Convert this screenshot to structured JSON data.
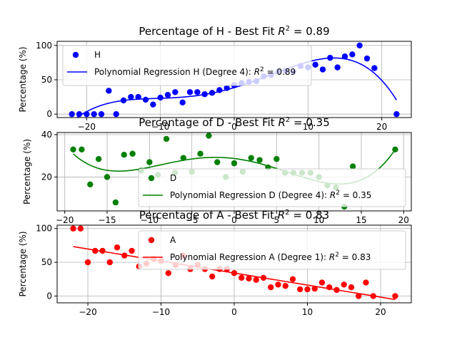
{
  "chart_data": [
    {
      "type": "scatter",
      "title": "Percentage of H - Best Fit R² = 0.89",
      "title_prefix": "Percentage of H - Best Fit ",
      "title_suffix": " = 0.89",
      "xlabel": "",
      "ylabel": "Percentage (%)",
      "xlim": [
        -24,
        24
      ],
      "ylim": [
        -5,
        106
      ],
      "xticks": [
        -20,
        -10,
        0,
        10,
        20
      ],
      "yticks": [
        0,
        50,
        100
      ],
      "grid": true,
      "legend_placement": "upper-left",
      "color": "#0000ff",
      "series": [
        {
          "name": "H",
          "kind": "points",
          "x": [
            -22,
            -21,
            -20,
            -19,
            -18,
            -17,
            -16,
            -15,
            -14,
            -13,
            -12,
            -11,
            -10,
            -9,
            -8,
            -7,
            -6,
            -5,
            -4,
            -3,
            -2,
            -1,
            0,
            1,
            2,
            3,
            4,
            5,
            6,
            7,
            8,
            9,
            10,
            11,
            12,
            13,
            14,
            15,
            16,
            17,
            18,
            19,
            22
          ],
          "values": [
            0,
            0,
            0,
            0,
            0,
            34,
            0,
            20,
            25,
            25,
            21,
            14,
            24,
            28,
            32,
            17,
            32,
            32,
            29,
            31,
            35,
            38,
            42,
            45,
            47,
            48,
            55,
            57,
            62,
            63,
            62,
            70,
            68,
            72,
            65,
            82,
            68,
            84,
            87,
            100,
            81,
            67,
            0
          ]
        },
        {
          "name": "Polynomial Regression H (Degree 4): ",
          "name_suffix": " = 0.89",
          "kind": "curve",
          "fit": "poly4",
          "x_range": [
            -22,
            22
          ]
        }
      ]
    },
    {
      "type": "scatter",
      "title": "Percentage of D - Best Fit R² = 0.35",
      "title_prefix": "Percentage of D - Best Fit ",
      "title_suffix": " = 0.35",
      "xlabel": "",
      "ylabel": "Percentage (%)",
      "xlim": [
        -20.9,
        20.9
      ],
      "ylim": [
        4,
        41
      ],
      "xticks": [
        -20,
        -15,
        -10,
        -5,
        0,
        5,
        10,
        15,
        20
      ],
      "yticks": [
        20,
        40
      ],
      "grid": true,
      "legend_placement": "lower-right",
      "color": "#008000",
      "series": [
        {
          "name": "D",
          "kind": "points",
          "x": [
            -19,
            -18,
            -17,
            -16,
            -15,
            -14,
            -13,
            -12,
            -11,
            -10,
            -9,
            -8,
            -7,
            -6,
            -5,
            -4,
            -3,
            -2,
            -1,
            0,
            1,
            2,
            3,
            4,
            5,
            6,
            7,
            8,
            9,
            10,
            11,
            12,
            13,
            14,
            19
          ],
          "values": [
            33,
            33,
            16.5,
            28.5,
            20,
            8,
            30.5,
            31,
            23,
            27,
            21,
            38,
            22,
            29,
            22.5,
            31,
            39.5,
            27,
            20,
            26.5,
            22.5,
            29,
            28,
            24.5,
            28.5,
            22,
            22,
            22,
            22,
            20,
            16,
            15,
            6,
            25,
            33
          ]
        },
        {
          "name": "Polynomial Regression D (Degree 4): ",
          "name_suffix": " = 0.35",
          "kind": "curve",
          "fit": "poly4",
          "x_range": [
            -19,
            19
          ]
        }
      ]
    },
    {
      "type": "scatter",
      "title": "Percentage of A - Best Fit R² = 0.83",
      "title_prefix": "Percentage of A - Best Fit ",
      "title_suffix": " = 0.83",
      "xlabel": "",
      "ylabel": "Percentage (%)",
      "xlim": [
        -24.2,
        24.2
      ],
      "ylim": [
        -10,
        105
      ],
      "xticks": [
        -20,
        -10,
        0,
        10,
        20
      ],
      "yticks": [
        0,
        50,
        100
      ],
      "grid": true,
      "legend_placement": "upper-right",
      "color": "#ff0000",
      "series": [
        {
          "name": "A",
          "kind": "points",
          "x": [
            -22,
            -21,
            -20,
            -19,
            -18,
            -17,
            -16,
            -15,
            -14,
            -13,
            -12,
            -11,
            -10,
            -9,
            -8,
            -7,
            -6,
            -5,
            -4,
            -3,
            -2,
            -1,
            0,
            1,
            2,
            3,
            4,
            5,
            6,
            7,
            8,
            9,
            10,
            11,
            12,
            13,
            14,
            15,
            16,
            17,
            18,
            19,
            22
          ],
          "values": [
            100,
            100,
            50,
            67,
            67,
            50,
            72,
            60,
            67,
            44,
            48,
            55,
            52,
            34,
            46,
            60,
            40,
            46,
            40,
            29,
            40,
            40,
            34,
            27,
            26,
            24,
            27,
            13,
            17,
            15,
            25,
            10,
            10,
            11,
            20,
            13,
            9,
            17,
            13,
            0,
            20,
            0,
            0
          ]
        },
        {
          "name": "Polynomial Regression A (Degree 1): ",
          "name_suffix": " = 0.83",
          "kind": "curve",
          "fit": "poly1",
          "x_range": [
            -22,
            22
          ]
        }
      ]
    }
  ]
}
